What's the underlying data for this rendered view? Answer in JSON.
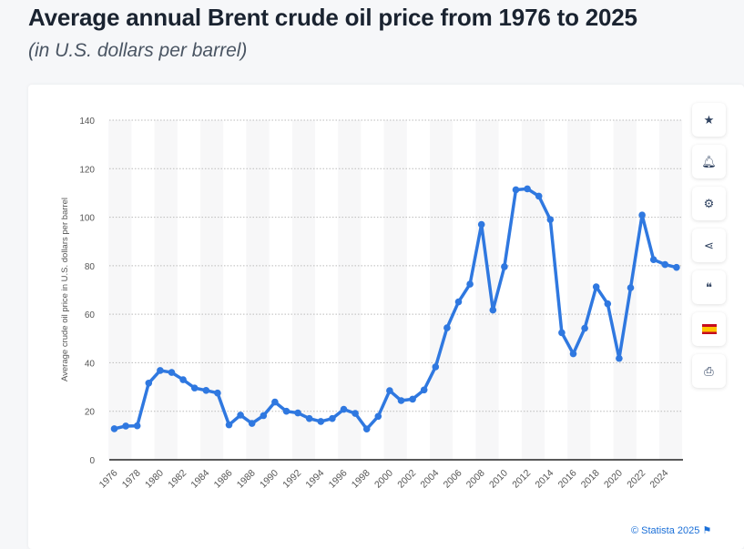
{
  "header": {
    "title": "Average annual Brent crude oil price from 1976 to 2025",
    "subtitle": "(in U.S. dollars per barrel)"
  },
  "toolbar": [
    {
      "icon": "star-icon"
    },
    {
      "icon": "bell-icon"
    },
    {
      "icon": "gear-icon"
    },
    {
      "icon": "share-icon"
    },
    {
      "icon": "quote-icon"
    },
    {
      "icon": "spain-flag-icon"
    },
    {
      "icon": "print-icon"
    }
  ],
  "credit": "© Statista 2025",
  "chart_data": {
    "type": "line",
    "title": "",
    "xlabel": "",
    "ylabel": "Average crude oil price in U.S. dollars per barrel",
    "ylim": [
      0,
      140
    ],
    "yticks": [
      0,
      20,
      40,
      60,
      80,
      100,
      120,
      140
    ],
    "xticks": [
      1976,
      1978,
      1980,
      1982,
      1984,
      1986,
      1988,
      1990,
      1992,
      1994,
      1996,
      1998,
      2000,
      2002,
      2004,
      2006,
      2008,
      2010,
      2012,
      2014,
      2016,
      2018,
      2020,
      2022,
      2024
    ],
    "grid": true,
    "color": "#2f78e0",
    "x": [
      1976,
      1977,
      1978,
      1979,
      1980,
      1981,
      1982,
      1983,
      1984,
      1985,
      1986,
      1987,
      1988,
      1989,
      1990,
      1991,
      1992,
      1993,
      1994,
      1995,
      1996,
      1997,
      1998,
      1999,
      2000,
      2001,
      2002,
      2003,
      2004,
      2005,
      2006,
      2007,
      2008,
      2009,
      2010,
      2011,
      2012,
      2013,
      2014,
      2015,
      2016,
      2017,
      2018,
      2019,
      2020,
      2021,
      2022,
      2023,
      2024,
      2025
    ],
    "values": [
      12.8,
      13.9,
      14.0,
      31.6,
      36.8,
      36.0,
      33.0,
      29.6,
      28.6,
      27.5,
      14.4,
      18.4,
      15.0,
      18.2,
      23.8,
      20.0,
      19.3,
      17.0,
      15.8,
      17.0,
      20.8,
      19.1,
      12.7,
      17.9,
      28.5,
      24.4,
      25.0,
      28.8,
      38.3,
      54.4,
      65.1,
      72.4,
      97.0,
      61.7,
      79.6,
      111.3,
      111.7,
      108.7,
      99.0,
      52.4,
      43.7,
      54.2,
      71.3,
      64.3,
      41.8,
      70.9,
      100.9,
      82.5,
      80.5,
      79.3
    ]
  }
}
